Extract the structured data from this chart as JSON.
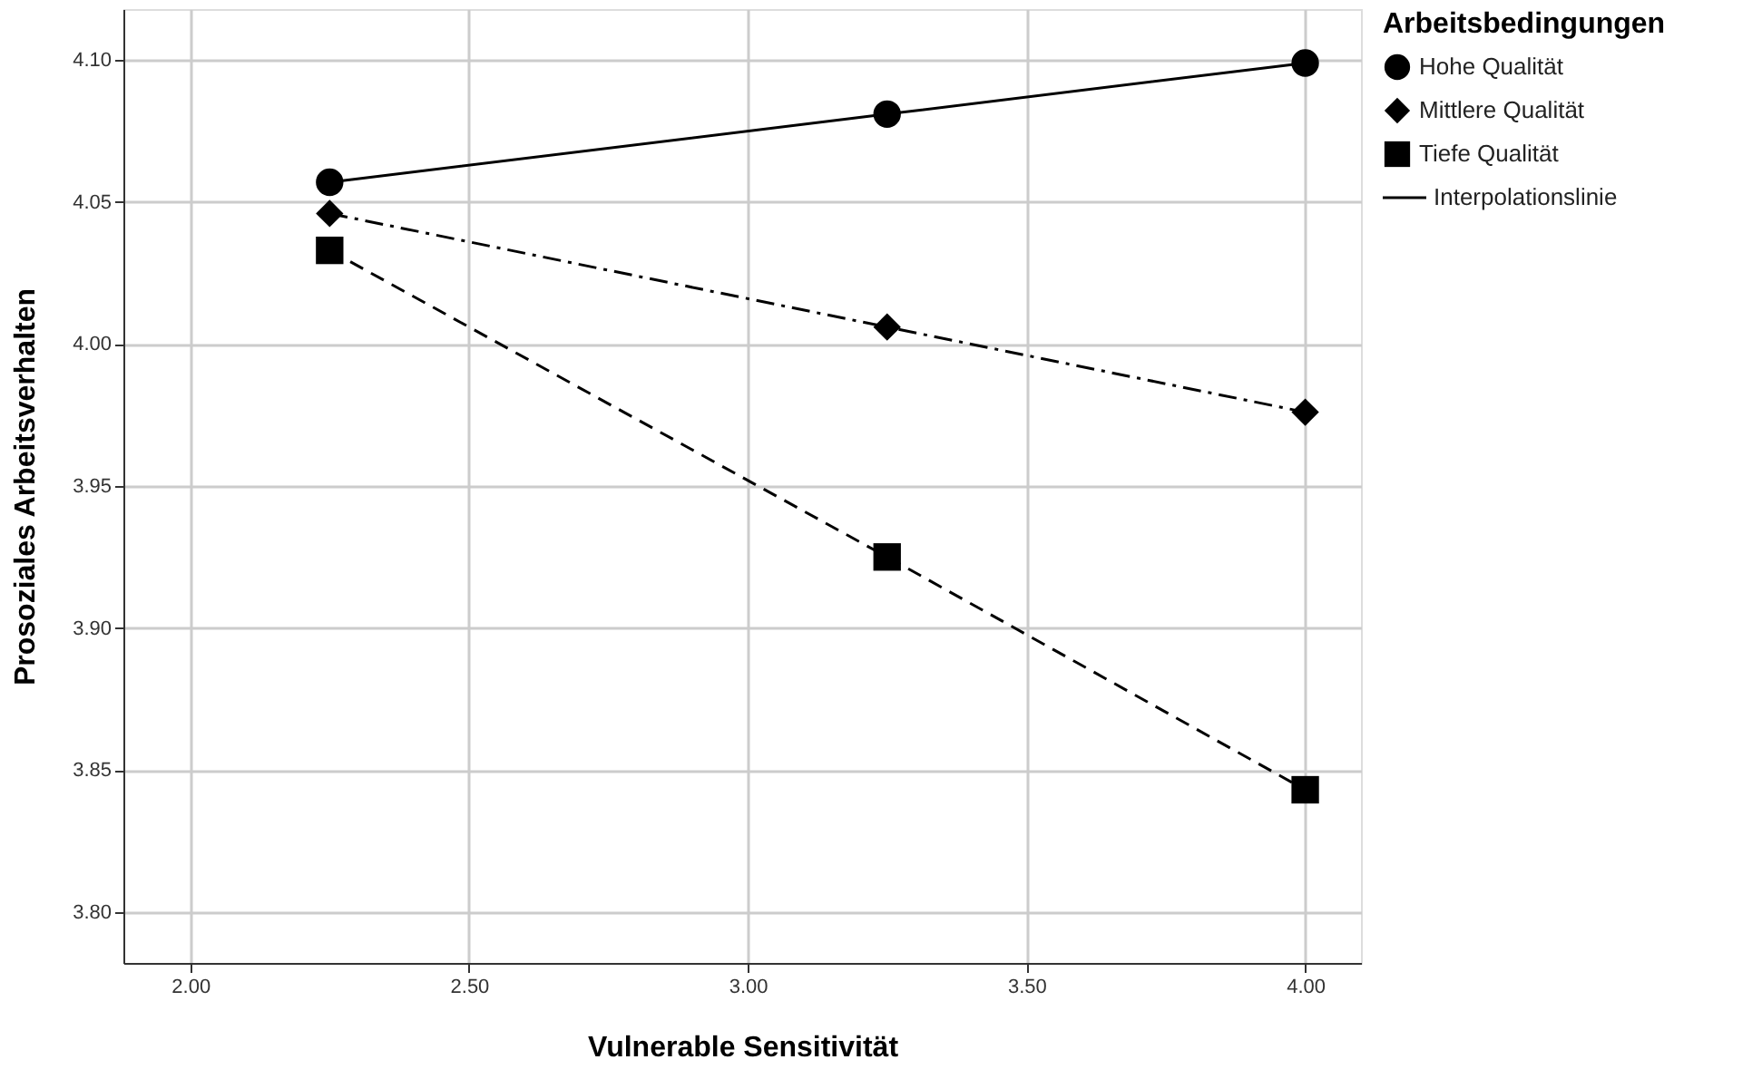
{
  "chart_data": {
    "type": "line",
    "xlabel": "Vulnerable Sensitivität",
    "ylabel": "Prosoziales Arbeitsverhalten",
    "legend_title": "Arbeitsbedingungen",
    "legend": "top right",
    "grid": true,
    "x": [
      2.25,
      3.25,
      4.0
    ],
    "series": [
      {
        "name": "Hohe Qualität",
        "color": "#000000",
        "marker": "circle",
        "line_style": "solid",
        "values": [
          4.057,
          4.081,
          4.099
        ]
      },
      {
        "name": "Mittlere Qualität",
        "color": "#000000",
        "marker": "diamond",
        "line_style": "dashdot",
        "values": [
          4.046,
          4.006,
          3.976
        ]
      },
      {
        "name": "Tiefe Qualität",
        "color": "#000000",
        "marker": "square",
        "line_style": "dashed",
        "values": [
          4.033,
          3.925,
          3.843
        ]
      }
    ],
    "annotations": [
      "Interpolationslinie"
    ],
    "xlim": [
      1.88,
      4.1
    ],
    "ylim": [
      3.782,
      4.118
    ],
    "xticks": [
      {
        "value": 2.0,
        "label": "2.00"
      },
      {
        "value": 2.5,
        "label": "2.50"
      },
      {
        "value": 3.0,
        "label": "3.00"
      },
      {
        "value": 3.5,
        "label": "3.50"
      },
      {
        "value": 4.0,
        "label": "4.00"
      }
    ],
    "yticks": [
      {
        "value": 3.8,
        "label": "3.80"
      },
      {
        "value": 3.85,
        "label": "3.85"
      },
      {
        "value": 3.9,
        "label": "3.90"
      },
      {
        "value": 3.95,
        "label": "3.95"
      },
      {
        "value": 4.0,
        "label": "4.00"
      },
      {
        "value": 4.05,
        "label": "4.05"
      },
      {
        "value": 4.1,
        "label": "4.10"
      }
    ]
  }
}
